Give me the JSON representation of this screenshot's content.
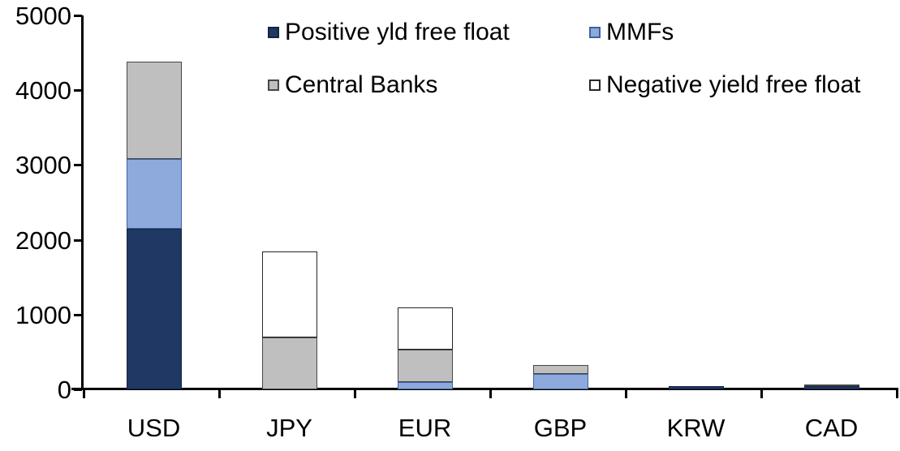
{
  "chart_data": {
    "type": "bar",
    "stacked": true,
    "title": "",
    "xlabel": "",
    "ylabel": "",
    "categories": [
      "USD",
      "JPY",
      "EUR",
      "GBP",
      "KRW",
      "CAD"
    ],
    "series": [
      {
        "name": "Positive yld free float",
        "color": "#1F3864",
        "border_color": "#16243F",
        "values": [
          2150,
          0,
          0,
          0,
          45,
          40
        ]
      },
      {
        "name": "MMFs",
        "color": "#8EA9DB",
        "border_color": "#3D63A0",
        "values": [
          930,
          0,
          100,
          210,
          0,
          0
        ]
      },
      {
        "name": "Central Banks",
        "color": "#BFBFBF",
        "border_color": "#474747",
        "values": [
          1300,
          690,
          430,
          120,
          0,
          25
        ]
      },
      {
        "name": "Negative yield free float",
        "color": "#FFFFFF",
        "border_color": "#262626",
        "values": [
          0,
          1150,
          570,
          0,
          0,
          0
        ]
      }
    ],
    "totals_by_category": [
      4380,
      1840,
      1100,
      330,
      45,
      65
    ],
    "ylim": [
      0,
      5000
    ],
    "y_ticks": [
      0,
      1000,
      2000,
      3000,
      4000,
      5000
    ],
    "grid": false,
    "legend_position": "top-inside-two-rows",
    "axis_color": "#000000",
    "background_color": "#FFFFFF",
    "text_color": "#000000"
  }
}
